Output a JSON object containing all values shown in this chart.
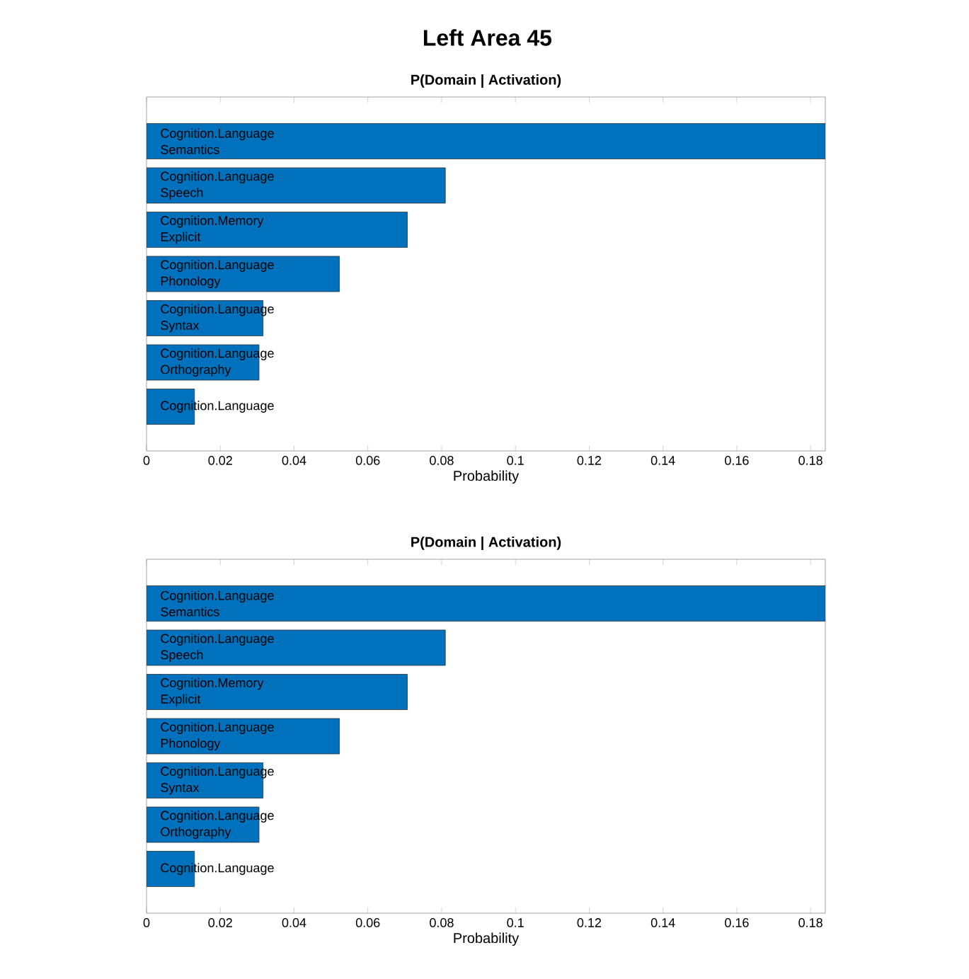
{
  "chart_data": [
    {
      "type": "bar",
      "orientation": "horizontal",
      "title": "Left Area 45",
      "subtitle": "P(Domain | Activation)",
      "xlabel": "Probability",
      "categories": [
        "Cognition.Language Semantics",
        "Cognition.Language Speech",
        "Cognition.Memory Explicit",
        "Cognition.Language Phonology",
        "Cognition.Language Syntax",
        "Cognition.Language Orthography",
        "Cognition.Language"
      ],
      "values": [
        0.184,
        0.081,
        0.0707,
        0.0523,
        0.0316,
        0.0305,
        0.013
      ],
      "color": "#0072bd",
      "xlim": [
        0,
        0.184
      ],
      "xticks": [
        0,
        0.02,
        0.04,
        0.06,
        0.08,
        0.1,
        0.12,
        0.14,
        0.16,
        0.18
      ],
      "tick_labels": "x",
      "grid": false
    },
    {
      "type": "bar",
      "orientation": "horizontal",
      "title": "P(Domain | Activation)",
      "xlabel": "Probability",
      "categories": [
        "Cognition.Language Semantics",
        "Cognition.Language Speech",
        "Cognition.Memory Explicit",
        "Cognition.Language Phonology",
        "Cognition.Language Syntax",
        "Cognition.Language Orthography",
        "Cognition.Language"
      ],
      "values": [
        0.184,
        0.081,
        0.0707,
        0.0523,
        0.0316,
        0.0305,
        0.013
      ],
      "color": "#0072bd",
      "xlim": [
        0,
        0.184
      ],
      "xticks": [
        0,
        0.02,
        0.04,
        0.06,
        0.08,
        0.1,
        0.12,
        0.14,
        0.16,
        0.18
      ],
      "tick_labels": "x",
      "grid": false
    }
  ]
}
